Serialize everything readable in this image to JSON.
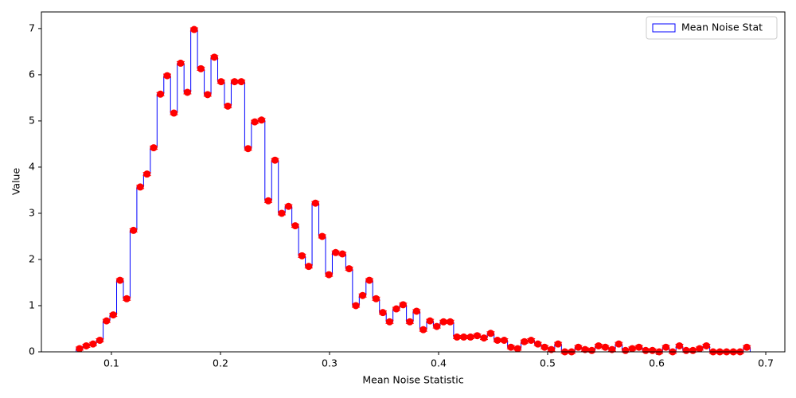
{
  "chart_data": {
    "type": "histogram",
    "xlabel": "Mean Noise Statistic",
    "ylabel": "Value",
    "series": [
      {
        "name": "Mean Noise Stat",
        "color": "#0000ff",
        "marker_color": "#ff0000",
        "bins": [
          0.0677,
          0.07388,
          0.08006,
          0.08624,
          0.09242,
          0.0986,
          0.10478,
          0.11096,
          0.11714,
          0.12332,
          0.1295,
          0.13568,
          0.14186,
          0.14804,
          0.15422,
          0.1604,
          0.16658,
          0.17276,
          0.17894,
          0.18512,
          0.1913,
          0.19748,
          0.20366,
          0.20984,
          0.21602,
          0.2222,
          0.22838,
          0.23456,
          0.24074,
          0.24692,
          0.2531,
          0.25928,
          0.26546,
          0.27164,
          0.27782,
          0.284,
          0.29018,
          0.29636,
          0.30254,
          0.30872,
          0.3149,
          0.32108,
          0.32726,
          0.33344,
          0.33962,
          0.3458,
          0.35198,
          0.35816,
          0.36434,
          0.37052,
          0.3767,
          0.38288,
          0.38906,
          0.39524,
          0.40142,
          0.4076,
          0.41378,
          0.41996,
          0.42614,
          0.43232,
          0.4385,
          0.44468,
          0.45086,
          0.45704,
          0.46322,
          0.4694,
          0.47558,
          0.48176,
          0.48794,
          0.49412,
          0.5003,
          0.50648,
          0.51266,
          0.51884,
          0.52502,
          0.5312,
          0.53738,
          0.54356,
          0.54974,
          0.55592,
          0.5621,
          0.56828,
          0.57446,
          0.58064,
          0.58682,
          0.593,
          0.59918,
          0.60536,
          0.61154,
          0.61772,
          0.6239,
          0.63008,
          0.63626,
          0.64244,
          0.64862,
          0.6548,
          0.66098,
          0.66716,
          0.67334,
          0.67952,
          0.6857
        ],
        "values": [
          0.07,
          0.13,
          0.17,
          0.25,
          0.67,
          0.8,
          1.55,
          1.15,
          2.63,
          3.57,
          3.85,
          4.42,
          5.58,
          5.98,
          5.17,
          6.25,
          5.62,
          6.98,
          6.13,
          5.57,
          6.38,
          5.85,
          5.32,
          5.85,
          5.85,
          4.4,
          4.98,
          5.02,
          3.27,
          4.15,
          3.0,
          3.15,
          2.73,
          2.08,
          1.85,
          3.22,
          2.5,
          1.67,
          2.15,
          2.12,
          1.8,
          1.0,
          1.22,
          1.55,
          1.15,
          0.85,
          0.65,
          0.93,
          1.02,
          0.65,
          0.88,
          0.48,
          0.67,
          0.55,
          0.65,
          0.65,
          0.32,
          0.32,
          0.32,
          0.35,
          0.3,
          0.4,
          0.25,
          0.25,
          0.1,
          0.07,
          0.22,
          0.25,
          0.17,
          0.1,
          0.05,
          0.17,
          0,
          0,
          0.1,
          0.05,
          0.03,
          0.13,
          0.1,
          0.05,
          0.17,
          0.03,
          0.07,
          0.1,
          0.03,
          0.03,
          0,
          0.1,
          0,
          0.13,
          0.03,
          0.03,
          0.07,
          0.13,
          0,
          0,
          0,
          0,
          0,
          0.1
        ]
      }
    ],
    "xlim": [
      0.0358,
      0.7175
    ],
    "ylim": [
      0,
      7.36
    ],
    "xticks": [
      0.1,
      0.2,
      0.3,
      0.4,
      0.5,
      0.6,
      0.7
    ],
    "yticks": [
      0,
      1,
      2,
      3,
      4,
      5,
      6,
      7
    ],
    "legend": "upper right"
  }
}
